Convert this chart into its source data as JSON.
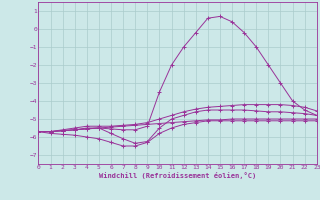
{
  "xlabel": "Windchill (Refroidissement éolien,°C)",
  "background_color": "#cce8e8",
  "grid_color": "#aacccc",
  "line_color": "#993399",
  "xlim": [
    0,
    23
  ],
  "ylim": [
    -7.5,
    1.5
  ],
  "xticks": [
    0,
    1,
    2,
    3,
    4,
    5,
    6,
    7,
    8,
    9,
    10,
    11,
    12,
    13,
    14,
    15,
    16,
    17,
    18,
    19,
    20,
    21,
    22,
    23
  ],
  "yticks": [
    1,
    0,
    -1,
    -2,
    -3,
    -4,
    -5,
    -6,
    -7
  ],
  "lines": [
    {
      "x": [
        0,
        1,
        2,
        3,
        4,
        5,
        6,
        7,
        8,
        9,
        10,
        11,
        12,
        13,
        14,
        15,
        16,
        17,
        18,
        19,
        20,
        21,
        22,
        23
      ],
      "y": [
        -5.7,
        -5.7,
        -5.65,
        -5.6,
        -5.55,
        -5.5,
        -5.45,
        -5.4,
        -5.35,
        -5.3,
        -5.25,
        -5.2,
        -5.15,
        -5.1,
        -5.05,
        -5.05,
        -5.0,
        -5.0,
        -5.0,
        -5.0,
        -5.0,
        -5.0,
        -5.0,
        -5.0
      ]
    },
    {
      "x": [
        0,
        1,
        2,
        3,
        4,
        5,
        6,
        7,
        8,
        9,
        10,
        11,
        12,
        13,
        14,
        15,
        16,
        17,
        18,
        19,
        20,
        21,
        22,
        23
      ],
      "y": [
        -5.7,
        -5.7,
        -5.6,
        -5.5,
        -5.4,
        -5.4,
        -5.4,
        -5.35,
        -5.3,
        -5.2,
        -5.0,
        -4.8,
        -4.6,
        -4.45,
        -4.35,
        -4.3,
        -4.25,
        -4.2,
        -4.2,
        -4.2,
        -4.2,
        -4.25,
        -4.35,
        -4.55
      ]
    },
    {
      "x": [
        0,
        1,
        2,
        3,
        4,
        5,
        6,
        7,
        8,
        9,
        10,
        11,
        12,
        13,
        14,
        15,
        16,
        17,
        18,
        19,
        20,
        21,
        22,
        23
      ],
      "y": [
        -5.7,
        -5.7,
        -5.65,
        -5.6,
        -5.55,
        -5.5,
        -5.8,
        -6.1,
        -6.35,
        -6.25,
        -5.5,
        -5.0,
        -4.8,
        -4.6,
        -4.5,
        -4.5,
        -4.5,
        -4.5,
        -4.55,
        -4.6,
        -4.6,
        -4.65,
        -4.7,
        -4.8
      ]
    },
    {
      "x": [
        0,
        1,
        2,
        3,
        4,
        5,
        6,
        7,
        8,
        9,
        10,
        11,
        12,
        13,
        14,
        15,
        16,
        17,
        18,
        19,
        20,
        21,
        22,
        23
      ],
      "y": [
        -5.7,
        -5.7,
        -5.65,
        -5.6,
        -5.5,
        -5.5,
        -5.55,
        -5.6,
        -5.6,
        -5.4,
        -3.5,
        -2.0,
        -1.0,
        -0.2,
        0.6,
        0.7,
        0.4,
        -0.2,
        -1.0,
        -2.0,
        -3.0,
        -4.0,
        -4.5,
        -4.8
      ]
    },
    {
      "x": [
        0,
        1,
        2,
        3,
        4,
        5,
        6,
        7,
        8,
        9,
        10,
        11,
        12,
        13,
        14,
        15,
        16,
        17,
        18,
        19,
        20,
        21,
        22,
        23
      ],
      "y": [
        -5.7,
        -5.8,
        -5.85,
        -5.9,
        -6.0,
        -6.1,
        -6.3,
        -6.5,
        -6.5,
        -6.3,
        -5.8,
        -5.5,
        -5.3,
        -5.2,
        -5.1,
        -5.1,
        -5.1,
        -5.1,
        -5.1,
        -5.1,
        -5.1,
        -5.1,
        -5.1,
        -5.1
      ]
    }
  ]
}
